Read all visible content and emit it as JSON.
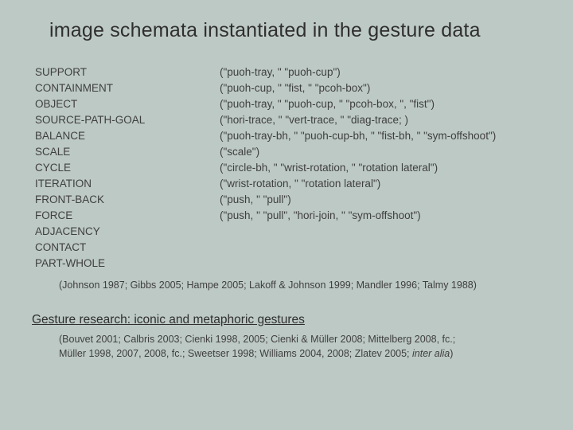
{
  "colors": {
    "background": "#bdc9c5",
    "text": "#3f3f3f",
    "title": "#2f2f2f"
  },
  "typography": {
    "family": "Arial",
    "title_size_pt": 19,
    "body_size_pt": 10,
    "refs_size_pt": 9,
    "subheading_size_pt": 12
  },
  "title": "image schemata instantiated in the gesture data",
  "schemata": [
    {
      "label": "SUPPORT",
      "examples": "(\"puoh-tray, \" \"puoh-cup\")"
    },
    {
      "label": "CONTAINMENT",
      "examples": " (\"puoh-cup, \" \"fist, \" \"pcoh-box\")"
    },
    {
      "label": "OBJECT",
      "examples": " (\"puoh-tray, \" \"puoh-cup, \" \"pcoh-box, \", \"fist\")"
    },
    {
      "label": "SOURCE-PATH-GOAL",
      "examples": "  (\"hori-trace, \" \"vert-trace, \" \"diag-trace; )"
    },
    {
      "label": "BALANCE",
      "examples": "(\"puoh-tray-bh, \" \"puoh-cup-bh, \" \"fist-bh, \" \"sym-offshoot\")"
    },
    {
      "label": "SCALE",
      "examples": " (\"scale\")"
    },
    {
      "label": "CYCLE",
      "examples": " (\"circle-bh, \" \"wrist-rotation, \" \"rotation lateral\")"
    },
    {
      "label": "ITERATION",
      "examples": " (\"wrist-rotation, \" \"rotation lateral\")"
    },
    {
      "label": "FRONT-BACK",
      "examples": " (\"push, \" \"pull\")"
    },
    {
      "label": "FORCE",
      "examples": " (\"push, \" \"pull\", \"hori-join, \" \"sym-offshoot\")"
    },
    {
      "label": "ADJACENCY",
      "examples": ""
    },
    {
      "label": "CONTACT",
      "examples": ""
    },
    {
      "label": "PART-WHOLE",
      "examples": ""
    }
  ],
  "refs1": "(Johnson 1987; Gibbs 2005; Hampe 2005; Lakoff & Johnson 1999; Mandler 1996; Talmy 1988)",
  "subheading": "Gesture research: iconic and metaphoric gestures",
  "refs2_line1": "(Bouvet 2001; Calbris 2003; Cienki 1998, 2005; Cienki & Müller 2008; Mittelberg 2008, fc.;",
  "refs2_line2_a": "Müller 1998, 2007, 2008, fc.; Sweetser 1998; Williams 2004, 2008; Zlatev 2005; ",
  "refs2_line2_b": "inter alia",
  "refs2_line2_c": ")"
}
